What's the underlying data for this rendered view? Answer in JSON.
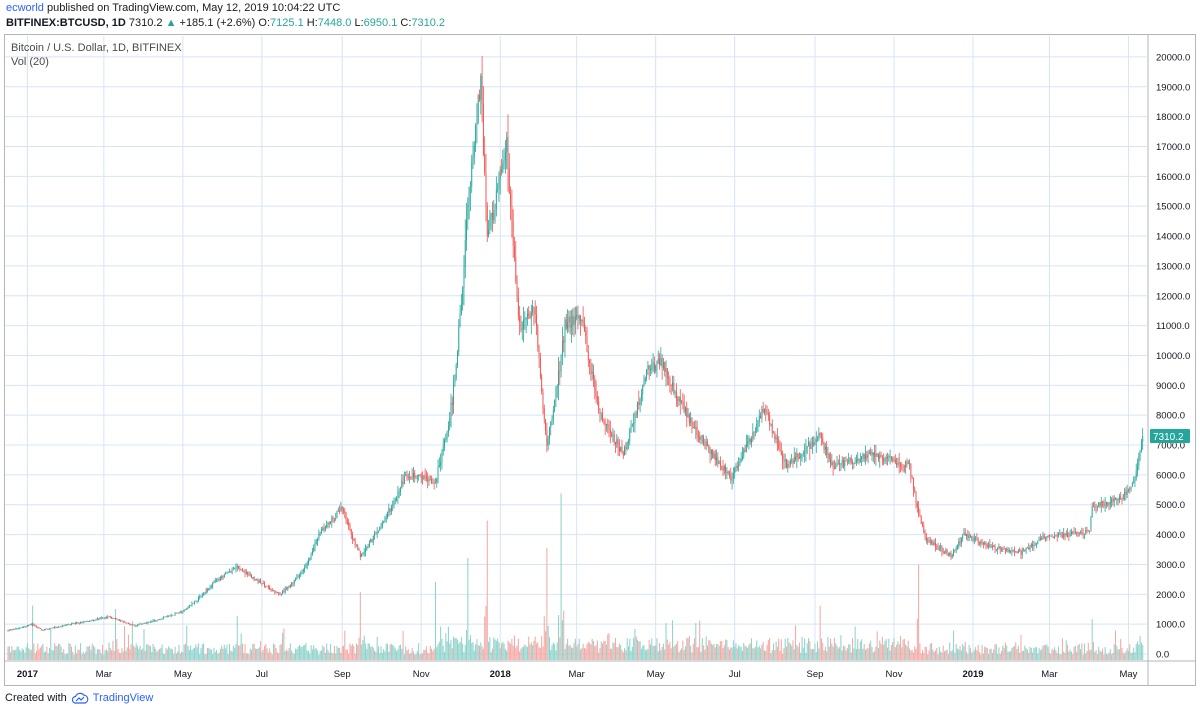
{
  "header": {
    "author": "ecworld",
    "published": "published on TradingView.com, May 12, 2019 10:04:22 UTC",
    "symbol": "BITFINEX:BTCUSD, 1D",
    "last": "7310.2",
    "change_arrow": "▲",
    "change": "+185.1 (+2.6%)",
    "o_label": "O:",
    "o": "7125.1",
    "h_label": "H:",
    "h": "7448.0",
    "l_label": "L:",
    "l": "6950.1",
    "c_label": "C:",
    "c": "7310.2"
  },
  "legend": {
    "title": "Bitcoin / U.S. Dollar, 1D, BITFINEX",
    "volume": "Vol (20)"
  },
  "footer": {
    "created_with": "Created with",
    "brand": "TradingView",
    "logo_icon": "tradingview-cloud-icon"
  },
  "colors": {
    "up": "#26a69a",
    "down": "#ef5350",
    "up_volume": "#8fd3cb",
    "down_volume": "#f4a9a5",
    "grid": "#d6e4f5",
    "price_label": "#26a69a"
  },
  "chart_data": {
    "type": "candlestick",
    "title": "Bitcoin / U.S. Dollar, 1D, BITFINEX",
    "ylim": [
      -200,
      20700
    ],
    "y_ticks": [
      20000,
      19000,
      18000,
      17000,
      16000,
      15000,
      14000,
      13000,
      12000,
      11000,
      10000,
      9000,
      8000,
      7000,
      6000,
      5000,
      4000,
      3000,
      2000,
      1000,
      0
    ],
    "y_tick_labels": [
      "20000.0",
      "19000.0",
      "18000.0",
      "17000.0",
      "16000.0",
      "15000.0",
      "14000.0",
      "13000.0",
      "12000.0",
      "11000.0",
      "10000.0",
      "9000.0",
      "8000.0",
      "7000.0",
      "6000.0",
      "5000.0",
      "4000.0",
      "3000.0",
      "2000.0",
      "1000.0",
      "0.0"
    ],
    "x_labels": [
      "2017",
      "Mar",
      "May",
      "Jul",
      "Sep",
      "Nov",
      "2018",
      "Mar",
      "May",
      "Jul",
      "Sep",
      "Nov",
      "2019",
      "Mar",
      "May"
    ],
    "x_label_dates": [
      "2017-01-01",
      "2017-03-01",
      "2017-05-01",
      "2017-07-01",
      "2017-09-01",
      "2017-11-01",
      "2018-01-01",
      "2018-03-01",
      "2018-05-01",
      "2018-07-01",
      "2018-09-01",
      "2018-11-01",
      "2019-01-01",
      "2019-03-01",
      "2019-05-01"
    ],
    "start_date": "2016-12-17",
    "end_date": "2019-05-12",
    "last_price": 7310.2,
    "last_price_label": "7310.2",
    "price_anchors": [
      [
        "2016-12-17",
        790
      ],
      [
        "2017-01-05",
        1000
      ],
      [
        "2017-01-12",
        800
      ],
      [
        "2017-02-01",
        980
      ],
      [
        "2017-03-05",
        1250
      ],
      [
        "2017-03-25",
        950
      ],
      [
        "2017-04-15",
        1200
      ],
      [
        "2017-05-01",
        1450
      ],
      [
        "2017-05-25",
        2400
      ],
      [
        "2017-06-12",
        2950
      ],
      [
        "2017-07-15",
        2000
      ],
      [
        "2017-08-01",
        2750
      ],
      [
        "2017-08-15",
        4100
      ],
      [
        "2017-09-01",
        4900
      ],
      [
        "2017-09-15",
        3300
      ],
      [
        "2017-10-01",
        4300
      ],
      [
        "2017-10-20",
        6000
      ],
      [
        "2017-11-12",
        5800
      ],
      [
        "2017-11-25",
        8500
      ],
      [
        "2017-12-07",
        15000
      ],
      [
        "2017-12-17",
        19300
      ],
      [
        "2017-12-22",
        14000
      ],
      [
        "2018-01-06",
        17000
      ],
      [
        "2018-01-16",
        11000
      ],
      [
        "2018-01-28",
        11500
      ],
      [
        "2018-02-06",
        7000
      ],
      [
        "2018-02-20",
        11000
      ],
      [
        "2018-03-05",
        11400
      ],
      [
        "2018-03-18",
        8200
      ],
      [
        "2018-04-06",
        6700
      ],
      [
        "2018-04-24",
        9500
      ],
      [
        "2018-05-05",
        9800
      ],
      [
        "2018-06-01",
        7500
      ],
      [
        "2018-06-28",
        5900
      ],
      [
        "2018-07-24",
        8300
      ],
      [
        "2018-08-10",
        6300
      ],
      [
        "2018-09-04",
        7300
      ],
      [
        "2018-09-15",
        6300
      ],
      [
        "2018-10-15",
        6700
      ],
      [
        "2018-11-13",
        6300
      ],
      [
        "2018-11-25",
        3900
      ],
      [
        "2018-12-15",
        3300
      ],
      [
        "2018-12-25",
        4000
      ],
      [
        "2019-01-15",
        3600
      ],
      [
        "2019-02-07",
        3400
      ],
      [
        "2019-02-24",
        3900
      ],
      [
        "2019-04-01",
        4100
      ],
      [
        "2019-04-03",
        4950
      ],
      [
        "2019-04-25",
        5200
      ],
      [
        "2019-05-05",
        5800
      ],
      [
        "2019-05-12",
        7310
      ]
    ],
    "volume_spikes": [
      [
        "2017-01-05",
        1600
      ],
      [
        "2017-03-10",
        1500
      ],
      [
        "2017-06-12",
        1300
      ],
      [
        "2017-09-15",
        2000
      ],
      [
        "2017-11-12",
        2300
      ],
      [
        "2017-12-07",
        3000
      ],
      [
        "2017-12-22",
        4100
      ],
      [
        "2018-02-06",
        3300
      ],
      [
        "2018-02-17",
        4900
      ],
      [
        "2018-11-20",
        2800
      ],
      [
        "2018-09-05",
        1600
      ],
      [
        "2019-04-03",
        1200
      ]
    ]
  }
}
